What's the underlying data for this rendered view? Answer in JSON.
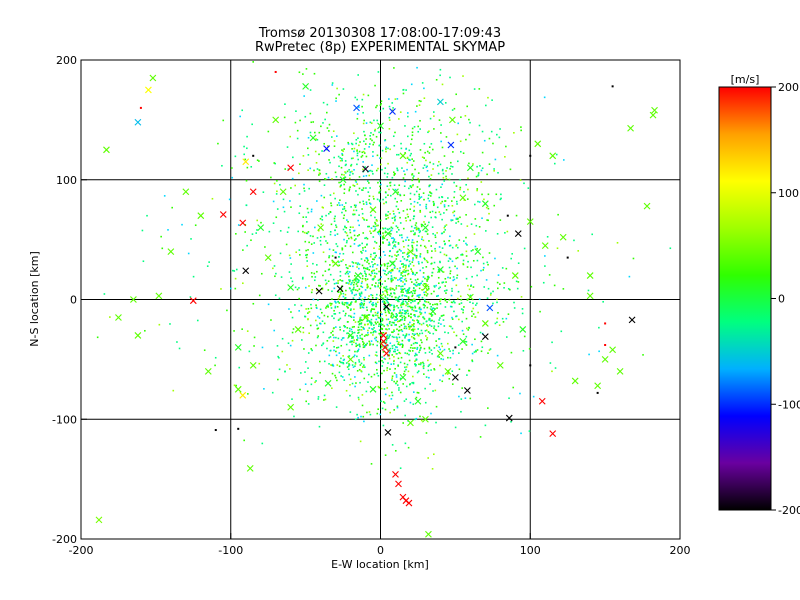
{
  "chart_data": {
    "type": "scatter",
    "title": "Tromsø 20130308 17:08:00-17:09:43",
    "subtitle": "RwPretec (8p) EXPERIMENTAL SKYMAP",
    "xlabel": "E-W location [km]",
    "ylabel": "N-S location [km]",
    "xlim": [
      -200,
      200
    ],
    "ylim": [
      -200,
      200
    ],
    "x_ticks": [
      "-200",
      "-100",
      "0",
      "100",
      "200"
    ],
    "y_ticks": [
      "-200",
      "-100",
      "0",
      "100",
      "200"
    ],
    "grid": true,
    "colorbar": {
      "label": "[m/s]",
      "range": [
        -200,
        200
      ],
      "ticks": [
        "200",
        "100",
        "0",
        "-100",
        "-200"
      ],
      "colors": [
        "#000000",
        "#6a00a0",
        "#0000ff",
        "#00b0ff",
        "#00ff80",
        "#30ff00",
        "#a0ff00",
        "#ffff00",
        "#ffa000",
        "#ff0000"
      ]
    },
    "marker_types": [
      "cross",
      "dot"
    ],
    "points": [
      {
        "x": -10,
        "y": 109,
        "v": -190,
        "m": "cross"
      },
      {
        "x": -41,
        "y": 7,
        "v": -200,
        "m": "cross"
      },
      {
        "x": -27,
        "y": 9,
        "v": -200,
        "m": "cross"
      },
      {
        "x": -90,
        "y": 24,
        "v": -200,
        "m": "cross"
      },
      {
        "x": 92,
        "y": 55,
        "v": -200,
        "m": "cross"
      },
      {
        "x": 168,
        "y": -17,
        "v": -200,
        "m": "cross"
      },
      {
        "x": 70,
        "y": -31,
        "v": -200,
        "m": "cross"
      },
      {
        "x": 50,
        "y": -65,
        "v": -200,
        "m": "cross"
      },
      {
        "x": 58,
        "y": -76,
        "v": -200,
        "m": "cross"
      },
      {
        "x": 86,
        "y": -99,
        "v": -200,
        "m": "cross"
      },
      {
        "x": 5,
        "y": -111,
        "v": -200,
        "m": "cross"
      },
      {
        "x": 4,
        "y": -6,
        "v": -200,
        "m": "cross"
      },
      {
        "x": -36,
        "y": 126,
        "v": -110,
        "m": "cross"
      },
      {
        "x": 47,
        "y": 129,
        "v": -100,
        "m": "cross"
      },
      {
        "x": 8,
        "y": 157,
        "v": -100,
        "m": "cross"
      },
      {
        "x": -16,
        "y": 160,
        "v": -90,
        "m": "cross"
      },
      {
        "x": -162,
        "y": 148,
        "v": -60,
        "m": "cross"
      },
      {
        "x": 73,
        "y": -7,
        "v": -90,
        "m": "cross"
      },
      {
        "x": 40,
        "y": 165,
        "v": -50,
        "m": "cross"
      },
      {
        "x": -85,
        "y": 90,
        "v": 200,
        "m": "cross"
      },
      {
        "x": -60,
        "y": 110,
        "v": 200,
        "m": "cross"
      },
      {
        "x": -92,
        "y": 64,
        "v": 200,
        "m": "cross"
      },
      {
        "x": -105,
        "y": 71,
        "v": 200,
        "m": "cross"
      },
      {
        "x": -125,
        "y": -1,
        "v": 200,
        "m": "cross"
      },
      {
        "x": 2,
        "y": -30,
        "v": 200,
        "m": "cross"
      },
      {
        "x": 2,
        "y": -35,
        "v": 200,
        "m": "cross"
      },
      {
        "x": 3,
        "y": -40,
        "v": 200,
        "m": "cross"
      },
      {
        "x": 4,
        "y": -45,
        "v": 200,
        "m": "cross"
      },
      {
        "x": 10,
        "y": -146,
        "v": 200,
        "m": "cross"
      },
      {
        "x": 12,
        "y": -154,
        "v": 200,
        "m": "cross"
      },
      {
        "x": 15,
        "y": -165,
        "v": 200,
        "m": "cross"
      },
      {
        "x": 17,
        "y": -168,
        "v": 200,
        "m": "cross"
      },
      {
        "x": 19,
        "y": -170,
        "v": 200,
        "m": "cross"
      },
      {
        "x": 108,
        "y": -85,
        "v": 200,
        "m": "cross"
      },
      {
        "x": 115,
        "y": -112,
        "v": 200,
        "m": "cross"
      },
      {
        "x": -90,
        "y": 115,
        "v": 120,
        "m": "cross"
      },
      {
        "x": -155,
        "y": 175,
        "v": 110,
        "m": "cross"
      },
      {
        "x": -92,
        "y": -80,
        "v": 120,
        "m": "cross"
      },
      {
        "x": -188,
        "y": -184,
        "v": 50,
        "m": "cross"
      },
      {
        "x": 32,
        "y": -196,
        "v": 40,
        "m": "cross"
      },
      {
        "x": 183,
        "y": 158,
        "v": 40,
        "m": "cross"
      },
      {
        "x": 182,
        "y": 154,
        "v": 40,
        "m": "cross"
      },
      {
        "x": 167,
        "y": 143,
        "v": 40,
        "m": "cross"
      },
      {
        "x": -183,
        "y": 125,
        "v": 40,
        "m": "cross"
      },
      {
        "x": -152,
        "y": 185,
        "v": 40,
        "m": "cross"
      },
      {
        "x": 115,
        "y": 120,
        "v": 40,
        "m": "cross"
      },
      {
        "x": 105,
        "y": 130,
        "v": 40,
        "m": "cross"
      },
      {
        "x": 150,
        "y": -50,
        "v": 40,
        "m": "cross"
      },
      {
        "x": 155,
        "y": -42,
        "v": 40,
        "m": "cross"
      },
      {
        "x": 160,
        "y": -60,
        "v": 40,
        "m": "cross"
      },
      {
        "x": 145,
        "y": -72,
        "v": 40,
        "m": "cross"
      },
      {
        "x": 178,
        "y": 78,
        "v": 40,
        "m": "cross"
      },
      {
        "x": -65,
        "y": 90,
        "v": 40,
        "m": "cross"
      },
      {
        "x": -120,
        "y": 70,
        "v": 40,
        "m": "cross"
      },
      {
        "x": -165,
        "y": 0,
        "v": 40,
        "m": "cross"
      },
      {
        "x": -148,
        "y": 3,
        "v": 40,
        "m": "cross"
      },
      {
        "x": -175,
        "y": -15,
        "v": 40,
        "m": "cross"
      },
      {
        "x": -162,
        "y": -30,
        "v": 40,
        "m": "cross"
      },
      {
        "x": -95,
        "y": -75,
        "v": 40,
        "m": "cross"
      },
      {
        "x": -85,
        "y": -55,
        "v": 40,
        "m": "cross"
      },
      {
        "x": -60,
        "y": -90,
        "v": 40,
        "m": "cross"
      },
      {
        "x": 30,
        "y": -100,
        "v": 40,
        "m": "cross"
      },
      {
        "x": 20,
        "y": -103,
        "v": 40,
        "m": "cross"
      },
      {
        "x": -87,
        "y": -141,
        "v": 40,
        "m": "cross"
      },
      {
        "x": 130,
        "y": -68,
        "v": 40,
        "m": "cross"
      },
      {
        "x": 110,
        "y": 45,
        "v": 40,
        "m": "cross"
      },
      {
        "x": 100,
        "y": 65,
        "v": 40,
        "m": "cross"
      },
      {
        "x": -130,
        "y": 90,
        "v": 40,
        "m": "cross"
      },
      {
        "x": 140,
        "y": 20,
        "v": 40,
        "m": "cross"
      },
      {
        "x": 122,
        "y": 52,
        "v": 40,
        "m": "cross"
      },
      {
        "x": 140,
        "y": 3,
        "v": 40,
        "m": "cross"
      },
      {
        "x": -115,
        "y": -60,
        "v": 40,
        "m": "cross"
      },
      {
        "x": -140,
        "y": 40,
        "v": 40,
        "m": "cross"
      },
      {
        "x": 60,
        "y": 2,
        "v": 40,
        "m": "cross"
      },
      {
        "x": 90,
        "y": 20,
        "v": 40,
        "m": "cross"
      },
      {
        "x": 70,
        "y": -20,
        "v": 40,
        "m": "cross"
      },
      {
        "x": 45,
        "y": -60,
        "v": 40,
        "m": "cross"
      },
      {
        "x": -40,
        "y": 60,
        "v": 40,
        "m": "cross"
      },
      {
        "x": -30,
        "y": 30,
        "v": 40,
        "m": "cross"
      },
      {
        "x": 20,
        "y": 40,
        "v": 40,
        "m": "cross"
      },
      {
        "x": 55,
        "y": 85,
        "v": 40,
        "m": "cross"
      },
      {
        "x": -55,
        "y": -25,
        "v": 40,
        "m": "cross"
      },
      {
        "x": -20,
        "y": -50,
        "v": 40,
        "m": "cross"
      },
      {
        "x": 40,
        "y": -45,
        "v": 40,
        "m": "cross"
      },
      {
        "x": 15,
        "y": 120,
        "v": 40,
        "m": "cross"
      },
      {
        "x": -70,
        "y": 150,
        "v": 40,
        "m": "cross"
      },
      {
        "x": 48,
        "y": 150,
        "v": 40,
        "m": "cross"
      },
      {
        "x": -5,
        "y": 75,
        "v": 40,
        "m": "cross"
      },
      {
        "x": 30,
        "y": 10,
        "v": 40,
        "m": "cross"
      },
      {
        "x": -10,
        "y": -15,
        "v": 40,
        "m": "cross"
      },
      {
        "x": 80,
        "y": -55,
        "v": 40,
        "m": "cross"
      },
      {
        "x": -75,
        "y": 35,
        "v": 40,
        "m": "cross"
      },
      {
        "x": 0,
        "y": 145,
        "v": 10,
        "m": "cross"
      },
      {
        "x": 60,
        "y": 110,
        "v": 10,
        "m": "cross"
      },
      {
        "x": -50,
        "y": 178,
        "v": 10,
        "m": "cross"
      },
      {
        "x": 30,
        "y": 60,
        "v": 10,
        "m": "cross"
      },
      {
        "x": -25,
        "y": 100,
        "v": 10,
        "m": "cross"
      },
      {
        "x": 10,
        "y": 90,
        "v": 10,
        "m": "cross"
      },
      {
        "x": -35,
        "y": -70,
        "v": 10,
        "m": "cross"
      },
      {
        "x": 15,
        "y": -65,
        "v": 10,
        "m": "cross"
      },
      {
        "x": -15,
        "y": 20,
        "v": 10,
        "m": "cross"
      },
      {
        "x": 35,
        "y": -10,
        "v": 10,
        "m": "cross"
      },
      {
        "x": 65,
        "y": 40,
        "v": 10,
        "m": "cross"
      },
      {
        "x": -60,
        "y": 10,
        "v": 10,
        "m": "cross"
      },
      {
        "x": -95,
        "y": -40,
        "v": 10,
        "m": "cross"
      },
      {
        "x": 95,
        "y": -25,
        "v": 10,
        "m": "cross"
      },
      {
        "x": 25,
        "y": -85,
        "v": 10,
        "m": "cross"
      },
      {
        "x": -45,
        "y": 135,
        "v": 10,
        "m": "cross"
      },
      {
        "x": 70,
        "y": 80,
        "v": 10,
        "m": "cross"
      },
      {
        "x": -80,
        "y": 60,
        "v": 10,
        "m": "cross"
      },
      {
        "x": 5,
        "y": 55,
        "v": 10,
        "m": "cross"
      },
      {
        "x": -20,
        "y": -30,
        "v": 10,
        "m": "cross"
      },
      {
        "x": 40,
        "y": 25,
        "v": 10,
        "m": "cross"
      },
      {
        "x": 55,
        "y": -35,
        "v": 10,
        "m": "cross"
      },
      {
        "x": -5,
        "y": -75,
        "v": 10,
        "m": "cross"
      },
      {
        "x": 8,
        "y": 30,
        "v": 10,
        "m": "cross"
      },
      {
        "x": 100,
        "y": 120,
        "v": -200,
        "m": "dot"
      },
      {
        "x": 125,
        "y": 35,
        "v": -200,
        "m": "dot"
      },
      {
        "x": 155,
        "y": 178,
        "v": -200,
        "m": "dot"
      },
      {
        "x": -160,
        "y": 160,
        "v": 200,
        "m": "dot"
      },
      {
        "x": -70,
        "y": 190,
        "v": 200,
        "m": "dot"
      },
      {
        "x": 150,
        "y": -20,
        "v": 200,
        "m": "dot"
      },
      {
        "x": 150,
        "y": -38,
        "v": 200,
        "m": "dot"
      },
      {
        "x": -110,
        "y": -109,
        "v": -200,
        "m": "dot"
      },
      {
        "x": -95,
        "y": -108,
        "v": -200,
        "m": "dot"
      },
      {
        "x": -30,
        "y": 35,
        "v": -200,
        "m": "dot"
      },
      {
        "x": 50,
        "y": -40,
        "v": -200,
        "m": "dot"
      },
      {
        "x": 100,
        "y": -55,
        "v": -200,
        "m": "dot"
      },
      {
        "x": 145,
        "y": -78,
        "v": -200,
        "m": "dot"
      },
      {
        "x": 85,
        "y": 70,
        "v": -200,
        "m": "dot"
      },
      {
        "x": -85,
        "y": 120,
        "v": -200,
        "m": "dot"
      }
    ],
    "dense_cloud": {
      "marker": "dot",
      "dominant_colors": [
        "#00ff80",
        "#30ff00"
      ],
      "secondary_colors": [
        "#00d8ff",
        "#a0ff00"
      ],
      "approx_count": 3000,
      "description": ""
    }
  }
}
